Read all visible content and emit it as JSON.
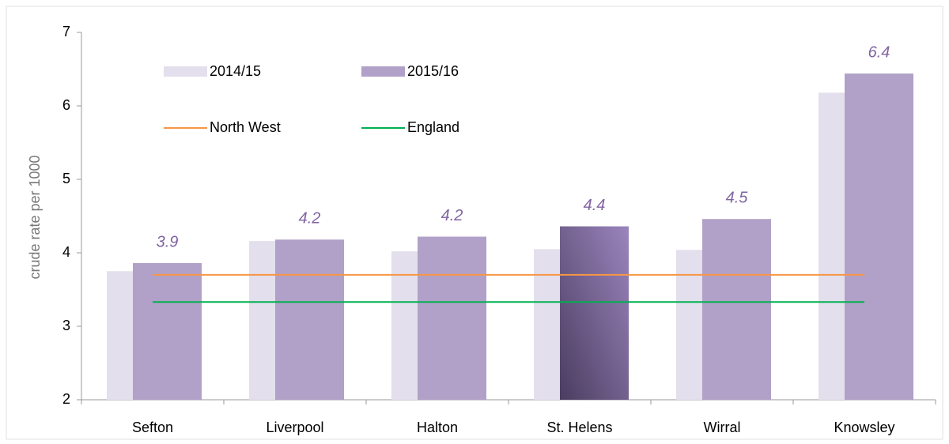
{
  "chart_data": {
    "type": "bar",
    "y_label": "crude rate per 1000",
    "categories": [
      "Sefton",
      "Liverpool",
      "Halton",
      "St. Helens",
      "Wirral",
      "Knowsley"
    ],
    "series": [
      {
        "name": "2014/15",
        "color": "#e3dfec",
        "values": [
          3.75,
          4.16,
          4.02,
          4.05,
          4.04,
          6.18
        ]
      },
      {
        "name": "2015/16",
        "color": "#b1a0c7",
        "values": [
          3.86,
          4.18,
          4.22,
          4.36,
          4.46,
          6.44
        ],
        "value_labels": [
          "3.9",
          "4.2",
          "4.2",
          "4.4",
          "4.5",
          "6.4"
        ],
        "highlight": {
          "index": 3,
          "color": "#6e5a8e"
        }
      }
    ],
    "reference_lines": [
      {
        "name": "North West",
        "color": "#f79646",
        "value": 3.7
      },
      {
        "name": "England",
        "color": "#00b050",
        "value": 3.33
      }
    ],
    "ylim": [
      2,
      7
    ],
    "yticks": [
      2,
      3,
      4,
      5,
      6,
      7
    ]
  }
}
